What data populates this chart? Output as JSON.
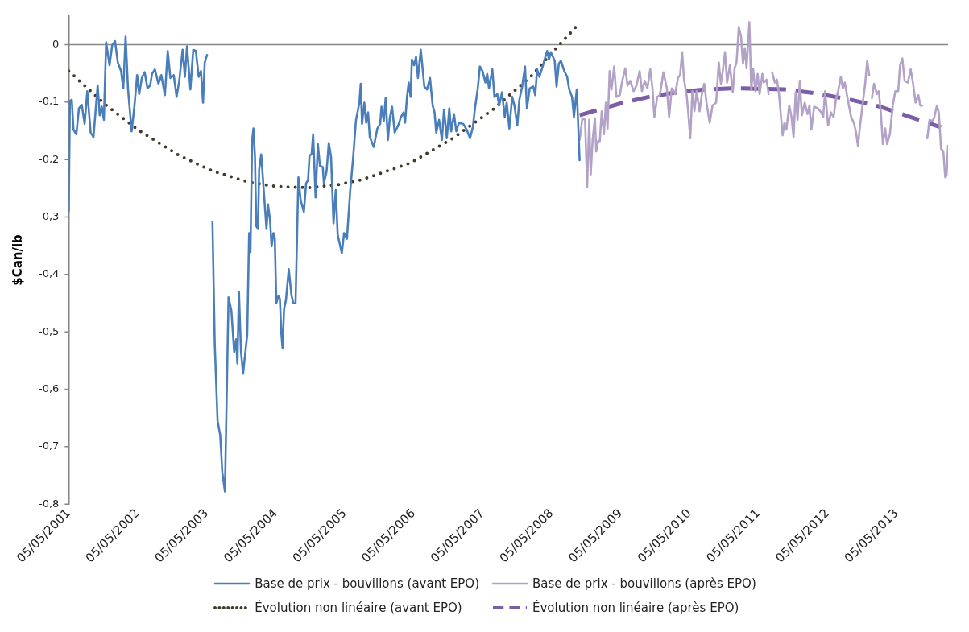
{
  "chart_data": {
    "type": "line",
    "ylabel": "$Can/lb",
    "legend": "bottom",
    "grid": false,
    "marker": "none",
    "xlim": [
      "2001-05-05",
      "2014-02-02"
    ],
    "xticks": [
      {
        "value": "2001-05-05",
        "label": "05/05/2001"
      },
      {
        "value": "2002-05-05",
        "label": "05/05/2002"
      },
      {
        "value": "2003-05-05",
        "label": "05/05/2003"
      },
      {
        "value": "2004-05-05",
        "label": "05/05/2004"
      },
      {
        "value": "2005-05-05",
        "label": "05/05/2005"
      },
      {
        "value": "2006-05-05",
        "label": "05/05/2006"
      },
      {
        "value": "2007-05-05",
        "label": "05/05/2007"
      },
      {
        "value": "2008-05-05",
        "label": "05/05/2008"
      },
      {
        "value": "2009-05-05",
        "label": "05/05/2009"
      },
      {
        "value": "2010-05-05",
        "label": "05/05/2010"
      },
      {
        "value": "2011-05-05",
        "label": "05/05/2011"
      },
      {
        "value": "2012-05-05",
        "label": "05/05/2012"
      },
      {
        "value": "2013-05-05",
        "label": "05/05/2013"
      }
    ],
    "ylim": [
      -0.8,
      0.05
    ],
    "ref_lines": [
      {
        "axis": "y",
        "value": 0,
        "color": "#868686"
      }
    ],
    "yticks": [
      {
        "value": -0.8,
        "label": "-0,8"
      },
      {
        "value": -0.7,
        "label": "-0,7"
      },
      {
        "value": -0.6,
        "label": "-0,6"
      },
      {
        "value": -0.5,
        "label": "-0,5"
      },
      {
        "value": -0.4,
        "label": "-0,4"
      },
      {
        "value": -0.3,
        "label": "-0,3"
      },
      {
        "value": -0.2,
        "label": "-0,2"
      },
      {
        "value": -0.1,
        "label": "-0,1"
      },
      0
    ],
    "series": [
      {
        "name": "Base de prix - bouvillons (avant EPO)",
        "color": "#4a7ebb",
        "line_style": "solid",
        "x": [
          "2001-05-05",
          "2001-05-11",
          "2001-05-21",
          "2001-05-30",
          "2001-06-14",
          "2001-06-28",
          "2001-07-13",
          "2001-07-28",
          "2001-08-11",
          "2001-08-29",
          "2001-09-13",
          "2001-10-05",
          "2001-10-16",
          "2001-10-27",
          "2001-11-07",
          "2001-11-19",
          "2001-12-07",
          "2001-12-21",
          "2002-01-05",
          "2002-01-20",
          "2002-02-06",
          "2002-02-18",
          "2002-03-02",
          "2002-03-15",
          "2002-04-03",
          "2002-04-18",
          "2002-05-02",
          "2002-05-13",
          "2002-05-27",
          "2002-06-11",
          "2002-06-26",
          "2002-07-10",
          "2002-07-20",
          "2002-08-04",
          "2002-08-23",
          "2002-09-07",
          "2002-09-26",
          "2002-10-11",
          "2002-10-25",
          "2002-11-12",
          "2002-11-27",
          "2002-12-11",
          "2002-12-29",
          "2003-01-10",
          "2003-01-21",
          "2003-02-08",
          "2003-02-23",
          "2003-03-09",
          "2003-03-24",
          "2003-04-05",
          "2003-04-16",
          "2003-04-25",
          "2003-05-07",
          "2003-05-20",
          "2003-06-05",
          "2003-06-17",
          "2003-07-02",
          "2003-07-16",
          "2003-07-27",
          "2003-08-10",
          "2003-08-29",
          "2003-09-13",
          "2003-09-28",
          "2003-10-08",
          "2003-10-15",
          "2003-10-23",
          "2003-11-03",
          "2003-11-14",
          "2003-12-06",
          "2003-12-16",
          "2003-12-23",
          "2004-01-01",
          "2004-01-08",
          "2004-01-16",
          "2004-01-23",
          "2004-02-01",
          "2004-02-07",
          "2004-02-18",
          "2004-03-03",
          "2004-03-17",
          "2004-03-25",
          "2004-04-05",
          "2004-04-13",
          "2004-04-23",
          "2004-04-30",
          "2004-05-08",
          "2004-05-19",
          "2004-05-27",
          "2004-06-03",
          "2004-06-10",
          "2004-06-18",
          "2004-06-28",
          "2004-07-13",
          "2004-07-27",
          "2004-08-06",
          "2004-08-18",
          "2004-09-02",
          "2004-09-14",
          "2004-10-01",
          "2004-10-13",
          "2004-10-23",
          "2004-10-31",
          "2004-11-11",
          "2004-11-19",
          "2004-12-02",
          "2004-12-14",
          "2004-12-25",
          "2005-01-09",
          "2005-01-15",
          "2005-01-29",
          "2005-02-10",
          "2005-02-22",
          "2005-03-07",
          "2005-03-19",
          "2005-03-29",
          "2005-04-20",
          "2005-05-02",
          "2005-05-17",
          "2005-06-03",
          "2005-06-19",
          "2005-07-04",
          "2005-07-22",
          "2005-07-29",
          "2005-08-05",
          "2005-08-17",
          "2005-08-27",
          "2005-09-06",
          "2005-09-15",
          "2005-10-06",
          "2005-10-25",
          "2005-11-09",
          "2005-11-16",
          "2005-11-28",
          "2005-12-08",
          "2005-12-20",
          "2005-12-30",
          "2006-01-11",
          "2006-01-25",
          "2006-02-12",
          "2006-02-27",
          "2006-03-13",
          "2006-03-21",
          "2006-03-31",
          "2006-04-09",
          "2006-04-19",
          "2006-04-26",
          "2006-05-08",
          "2006-05-18",
          "2006-05-28",
          "2006-06-12",
          "2006-07-01",
          "2006-07-15",
          "2006-07-31",
          "2006-08-14",
          "2006-08-24",
          "2006-09-02",
          "2006-09-17",
          "2006-10-02",
          "2006-10-13",
          "2006-10-28",
          "2006-11-10",
          "2006-11-20",
          "2006-12-05",
          "2006-12-17",
          "2006-12-31",
          "2007-01-23",
          "2007-02-10",
          "2007-02-28",
          "2007-03-15",
          "2007-03-27",
          "2007-04-10",
          "2007-04-21",
          "2007-05-05",
          "2007-05-20",
          "2007-05-30",
          "2007-06-08",
          "2007-06-26",
          "2007-07-07",
          "2007-07-22",
          "2007-08-01",
          "2007-08-16",
          "2007-08-31",
          "2007-09-10",
          "2007-09-24",
          "2007-10-09",
          "2007-10-21",
          "2007-11-05",
          "2007-11-16",
          "2007-12-01",
          "2007-12-16",
          "2007-12-26",
          "2008-01-10",
          "2008-01-29",
          "2008-02-08",
          "2008-02-18",
          "2008-03-01",
          "2008-03-16",
          "2008-03-27",
          "2008-04-11",
          "2008-04-21",
          "2008-05-01",
          "2008-05-21",
          "2008-05-31",
          "2008-06-12",
          "2008-06-23",
          "2008-07-11",
          "2008-07-26",
          "2008-08-06",
          "2008-08-21",
          "2008-08-31",
          "2008-09-15",
          "2008-09-30"
        ],
        "values": [
          -0.29,
          -0.098,
          -0.096,
          -0.148,
          -0.156,
          -0.111,
          -0.105,
          -0.138,
          -0.081,
          -0.153,
          -0.161,
          -0.071,
          -0.123,
          -0.108,
          -0.131,
          0.004,
          -0.036,
          -0.001,
          0.006,
          -0.031,
          -0.046,
          -0.076,
          0.014,
          -0.078,
          -0.151,
          -0.106,
          -0.053,
          -0.086,
          -0.058,
          -0.048,
          -0.076,
          -0.071,
          -0.051,
          -0.043,
          -0.068,
          -0.053,
          -0.088,
          -0.011,
          -0.058,
          -0.053,
          -0.091,
          -0.063,
          -0.009,
          -0.056,
          -0.003,
          -0.078,
          -0.009,
          -0.011,
          -0.056,
          -0.046,
          -0.101,
          -0.031,
          -0.018,
          null,
          -0.308,
          -0.52,
          -0.655,
          -0.68,
          -0.745,
          -0.778,
          -0.44,
          -0.463,
          -0.535,
          -0.513,
          -0.555,
          -0.43,
          -0.535,
          -0.573,
          -0.505,
          -0.328,
          -0.361,
          -0.166,
          -0.146,
          -0.196,
          -0.316,
          -0.321,
          -0.218,
          -0.191,
          -0.256,
          -0.321,
          -0.278,
          -0.306,
          -0.351,
          -0.328,
          -0.336,
          -0.45,
          -0.438,
          -0.443,
          -0.5,
          -0.528,
          -0.46,
          -0.445,
          -0.391,
          -0.436,
          -0.45,
          -0.45,
          -0.231,
          -0.271,
          -0.291,
          -0.241,
          -0.236,
          -0.193,
          -0.191,
          -0.156,
          -0.266,
          -0.173,
          -0.211,
          -0.213,
          -0.241,
          -0.221,
          -0.171,
          -0.196,
          -0.311,
          -0.253,
          -0.331,
          -0.363,
          -0.328,
          -0.338,
          -0.256,
          -0.196,
          -0.131,
          -0.101,
          -0.068,
          -0.138,
          -0.101,
          -0.136,
          -0.118,
          -0.161,
          -0.178,
          -0.146,
          -0.138,
          -0.108,
          -0.133,
          -0.093,
          -0.166,
          -0.128,
          -0.108,
          -0.153,
          -0.141,
          -0.126,
          -0.118,
          -0.136,
          -0.091,
          -0.066,
          -0.091,
          -0.026,
          -0.036,
          -0.021,
          -0.058,
          -0.009,
          -0.073,
          -0.078,
          -0.058,
          -0.106,
          -0.118,
          -0.153,
          -0.131,
          -0.166,
          -0.113,
          -0.163,
          -0.111,
          -0.151,
          -0.121,
          -0.151,
          -0.136,
          -0.138,
          -0.148,
          -0.163,
          -0.143,
          -0.108,
          -0.076,
          -0.038,
          -0.046,
          -0.066,
          -0.051,
          -0.076,
          -0.043,
          -0.091,
          -0.086,
          -0.106,
          -0.083,
          -0.126,
          -0.101,
          -0.146,
          -0.091,
          -0.106,
          -0.141,
          -0.096,
          -0.073,
          -0.038,
          -0.111,
          -0.076,
          -0.073,
          -0.088,
          -0.043,
          -0.056,
          -0.041,
          -0.028,
          -0.011,
          -0.026,
          -0.013,
          -0.028,
          -0.073,
          -0.033,
          -0.028,
          -0.046,
          -0.056,
          -0.078,
          -0.091,
          -0.126,
          -0.078,
          -0.201
        ]
      },
      {
        "name": "Base de prix - bouvillons (après EPO)",
        "color": "#b3a2c7",
        "line_style": "solid",
        "x": [
          "2008-09-30",
          "2008-10-15",
          "2008-10-29",
          "2008-11-09",
          "2008-11-20",
          "2008-11-28",
          "2008-12-08",
          "2008-12-20",
          "2008-12-27",
          "2009-01-06",
          "2009-01-15",
          "2009-01-25",
          "2009-02-06",
          "2009-02-16",
          "2009-02-25",
          "2009-03-08",
          "2009-03-18",
          "2009-04-01",
          "2009-04-13",
          "2009-05-01",
          "2009-05-12",
          "2009-05-30",
          "2009-06-11",
          "2009-06-25",
          "2009-07-13",
          "2009-07-28",
          "2009-08-14",
          "2009-08-26",
          "2009-09-10",
          "2009-09-24",
          "2009-10-09",
          "2009-10-21",
          "2009-10-31",
          "2009-11-15",
          "2009-11-29",
          "2009-12-18",
          "2010-01-05",
          "2010-01-17",
          "2010-01-31",
          "2010-02-18",
          "2010-03-05",
          "2010-03-16",
          "2010-03-27",
          "2010-04-06",
          "2010-04-21",
          "2010-04-29",
          "2010-05-09",
          "2010-05-20",
          "2010-05-31",
          "2010-06-12",
          "2010-06-27",
          "2010-07-11",
          "2010-07-22",
          "2010-08-05",
          "2010-08-20",
          "2010-09-04",
          "2010-09-23",
          "2010-10-07",
          "2010-10-18",
          "2010-10-28",
          "2010-11-09",
          "2010-11-20",
          "2010-12-05",
          "2010-12-20",
          "2010-12-30",
          "2011-01-09",
          "2011-01-21",
          "2011-02-02",
          "2011-02-12",
          "2011-02-22",
          "2011-03-03",
          "2011-03-18",
          "2011-03-28",
          "2011-04-07",
          "2011-04-19",
          "2011-05-01",
          "2011-05-11",
          "2011-05-26",
          "2011-06-02",
          "2011-06-17",
          "2011-06-28",
          "2011-07-07",
          "2011-07-16",
          "2011-07-31",
          "2011-08-11",
          "2011-08-22",
          "2011-09-10",
          "2011-09-20",
          "2011-09-30",
          "2011-10-15",
          "2011-10-27",
          "2011-11-07",
          "2011-11-18",
          "2011-11-28",
          "2011-12-10",
          "2011-12-21",
          "2012-01-05",
          "2012-01-20",
          "2012-01-30",
          "2012-02-09",
          "2012-02-24",
          "2012-03-14",
          "2012-04-02",
          "2012-04-12",
          "2012-04-22",
          "2012-05-08",
          "2012-05-23",
          "2012-06-06",
          "2012-06-18",
          "2012-06-30",
          "2012-07-14",
          "2012-07-25",
          "2012-08-04",
          "2012-08-23",
          "2012-09-07",
          "2012-09-21",
          "2012-10-02",
          "2012-10-13",
          "2012-10-25",
          "2012-11-04",
          "2012-11-19",
          "2012-12-01",
          "2012-12-11",
          "2012-12-19",
          "2012-12-26",
          "2013-01-06",
          "2013-01-21",
          "2013-01-31",
          "2013-02-11",
          "2013-02-22",
          "2013-03-06",
          "2013-03-16",
          "2013-03-31",
          "2013-04-15",
          "2013-04-29",
          "2013-05-14",
          "2013-05-24",
          "2013-06-05",
          "2013-06-17",
          "2013-07-04",
          "2013-07-19",
          "2013-07-31",
          "2013-08-14",
          "2013-08-29",
          "2013-09-08",
          "2013-09-18",
          "2013-10-02",
          "2013-10-15",
          "2013-10-27",
          "2013-11-10",
          "2013-11-20",
          "2013-12-05",
          "2013-12-15",
          "2013-12-27",
          "2014-01-08",
          "2014-01-18",
          "2014-01-25",
          "2014-02-02"
        ],
        "values": [
          -0.166,
          -0.128,
          -0.131,
          -0.248,
          -0.131,
          -0.226,
          -0.166,
          -0.128,
          -0.186,
          -0.168,
          -0.168,
          -0.116,
          -0.156,
          -0.101,
          -0.146,
          -0.046,
          -0.078,
          -0.038,
          -0.091,
          -0.088,
          -0.066,
          -0.041,
          -0.071,
          -0.063,
          -0.081,
          -0.071,
          -0.046,
          -0.081,
          -0.063,
          -0.076,
          -0.043,
          -0.076,
          -0.126,
          -0.091,
          -0.088,
          -0.048,
          -0.076,
          -0.126,
          -0.076,
          -0.086,
          -0.058,
          -0.053,
          -0.013,
          -0.061,
          -0.091,
          -0.121,
          -0.163,
          -0.081,
          -0.116,
          -0.081,
          -0.116,
          -0.083,
          -0.068,
          -0.106,
          -0.136,
          -0.106,
          -0.101,
          -0.031,
          -0.068,
          -0.046,
          -0.013,
          -0.066,
          -0.036,
          -0.083,
          -0.041,
          -0.031,
          0.031,
          0.014,
          -0.033,
          -0.006,
          -0.041,
          0.039,
          -0.078,
          -0.043,
          -0.081,
          -0.051,
          -0.086,
          -0.051,
          -0.066,
          -0.061,
          -0.086,
          null,
          -0.048,
          -0.066,
          -0.061,
          -0.086,
          -0.158,
          -0.136,
          -0.148,
          -0.106,
          -0.126,
          -0.161,
          -0.083,
          -0.131,
          -0.063,
          -0.123,
          -0.101,
          -0.121,
          -0.106,
          -0.148,
          -0.108,
          -0.111,
          -0.118,
          -0.126,
          -0.081,
          -0.141,
          -0.118,
          -0.126,
          -0.096,
          -0.081,
          -0.056,
          -0.076,
          -0.066,
          -0.101,
          -0.126,
          -0.136,
          -0.151,
          -0.176,
          -0.138,
          -0.111,
          -0.071,
          -0.028,
          -0.053,
          null,
          -0.093,
          -0.068,
          -0.086,
          -0.081,
          -0.118,
          -0.173,
          -0.146,
          -0.173,
          -0.156,
          -0.106,
          -0.081,
          -0.081,
          -0.036,
          -0.024,
          -0.063,
          -0.066,
          -0.043,
          -0.066,
          -0.101,
          -0.088,
          -0.106,
          -0.106,
          null,
          -0.163,
          -0.131,
          -0.133,
          -0.128,
          -0.106,
          -0.118,
          -0.181,
          -0.186,
          -0.231,
          -0.228,
          -0.176
        ]
      },
      {
        "name": "Évolution non linéaire (avant EPO)",
        "color": "#3f3a2a",
        "line_style": "dotted",
        "x": [
          "2001-05-05",
          "2001-11-10",
          "2002-05-05",
          "2002-12-11",
          "2003-06-05",
          "2003-12-11",
          "2004-05-09",
          "2004-10-23",
          "2005-03-26",
          "2005-08-05",
          "2006-04-19",
          "2006-11-29",
          "2007-07-03",
          "2008-01-17",
          "2008-05-13",
          "2008-09-08"
        ],
        "values": [
          -0.046,
          -0.103,
          -0.148,
          -0.193,
          -0.22,
          -0.239,
          -0.247,
          -0.249,
          -0.244,
          -0.235,
          -0.206,
          -0.163,
          -0.112,
          -0.055,
          -0.012,
          0.03
        ]
      },
      {
        "name": "Évolution non linéaire (après EPO)",
        "color": "#7b5ea7",
        "line_style": "dashed",
        "x": [
          "2008-09-30",
          "2008-12-12",
          "2009-05-08",
          "2009-10-01",
          "2010-02-25",
          "2010-07-29",
          "2010-12-23",
          "2011-05-26",
          "2011-09-20",
          "2012-03-07",
          "2012-08-22",
          "2013-02-07",
          "2013-07-18",
          "2013-12-27"
        ],
        "values": [
          -0.123,
          -0.116,
          -0.102,
          -0.091,
          -0.083,
          -0.078,
          -0.076,
          -0.077,
          -0.078,
          -0.085,
          -0.095,
          -0.108,
          -0.126,
          -0.144
        ]
      }
    ]
  }
}
